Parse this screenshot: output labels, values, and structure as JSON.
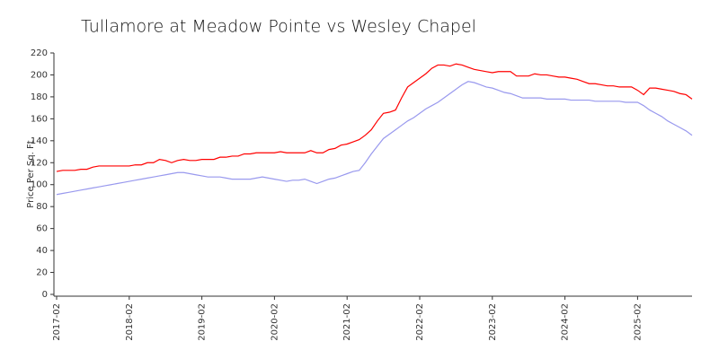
{
  "chart_data": {
    "type": "line",
    "title": "Tullamore at Meadow Pointe vs Wesley Chapel",
    "y_label": "Price Per Sq. Ft",
    "categories": [
      "2017-02",
      null,
      null,
      null,
      null,
      null,
      null,
      null,
      null,
      null,
      null,
      null,
      "2018-02",
      null,
      null,
      null,
      null,
      null,
      null,
      null,
      null,
      null,
      null,
      null,
      "2019-02",
      null,
      null,
      null,
      null,
      null,
      null,
      null,
      null,
      null,
      null,
      null,
      "2020-02",
      null,
      null,
      null,
      null,
      null,
      null,
      null,
      null,
      null,
      null,
      null,
      "2021-02",
      null,
      null,
      null,
      null,
      null,
      null,
      null,
      null,
      null,
      null,
      null,
      "2022-02",
      null,
      null,
      null,
      null,
      null,
      null,
      null,
      null,
      null,
      null,
      null,
      "2023-02",
      null,
      null,
      null,
      null,
      null,
      null,
      null,
      null,
      null,
      null,
      null,
      "2024-02",
      null,
      null,
      null,
      null,
      null,
      null,
      null,
      null,
      null,
      null,
      null,
      "2025-02",
      null,
      null,
      null,
      null,
      null,
      null,
      null,
      null,
      null
    ],
    "series": [
      {
        "color": "#ff0000",
        "values": [
          112,
          113,
          113,
          113,
          114,
          114,
          116,
          117,
          117,
          117,
          117,
          117,
          117,
          118,
          118,
          120,
          120,
          123,
          122,
          120,
          122,
          123,
          122,
          122,
          123,
          123,
          123,
          125,
          125,
          126,
          126,
          128,
          128,
          129,
          129,
          129,
          129,
          130,
          129,
          129,
          129,
          129,
          131,
          129,
          129,
          132,
          133,
          136,
          137,
          139,
          141,
          145,
          150,
          158,
          165,
          166,
          168,
          179,
          189,
          193,
          197,
          201,
          206,
          209,
          209,
          208,
          210,
          209,
          207,
          205,
          204,
          203,
          202,
          203,
          203,
          203,
          199,
          199,
          199,
          201,
          200,
          200,
          199,
          198,
          198,
          197,
          196,
          194,
          192,
          192,
          191,
          190,
          190,
          189,
          189,
          189,
          186,
          182,
          188,
          188,
          187,
          186,
          185,
          183,
          182,
          178
        ]
      },
      {
        "color": "#9999ee",
        "values": [
          91,
          92,
          93,
          94,
          95,
          96,
          97,
          98,
          99,
          100,
          101,
          102,
          103,
          104,
          105,
          106,
          107,
          108,
          109,
          110,
          111,
          111,
          110,
          109,
          108,
          107,
          107,
          107,
          106,
          105,
          105,
          105,
          105,
          106,
          107,
          106,
          105,
          104,
          103,
          104,
          104,
          105,
          103,
          101,
          103,
          105,
          106,
          108,
          110,
          112,
          113,
          120,
          128,
          135,
          142,
          146,
          150,
          154,
          158,
          161,
          165,
          169,
          172,
          175,
          179,
          183,
          187,
          191,
          194,
          193,
          191,
          189,
          188,
          186,
          184,
          183,
          181,
          179,
          179,
          179,
          179,
          178,
          178,
          178,
          178,
          177,
          177,
          177,
          177,
          176,
          176,
          176,
          176,
          176,
          175,
          175,
          175,
          172,
          168,
          165,
          162,
          158,
          155,
          152,
          149,
          145
        ]
      }
    ],
    "ylim": [
      0,
      220
    ],
    "yticks": [
      0,
      20,
      40,
      60,
      80,
      100,
      120,
      140,
      160,
      180,
      200,
      220
    ],
    "grid": false
  }
}
